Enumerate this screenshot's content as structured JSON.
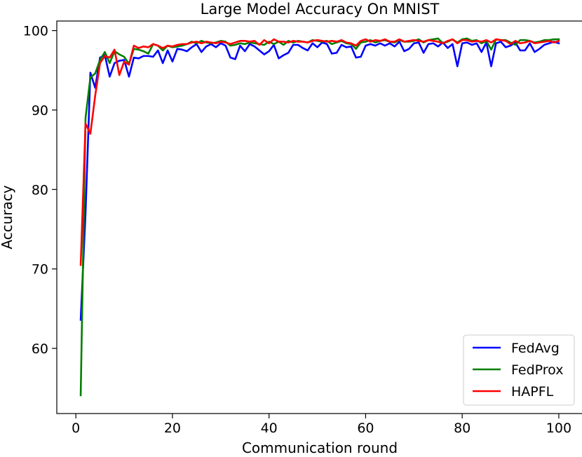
{
  "chart_data": {
    "type": "line",
    "title": "Large Model Accuracy On MNIST",
    "xlabel": "Communication round",
    "ylabel": "Accuracy",
    "xlim": [
      -3.95,
      104.95
    ],
    "ylim": [
      51.8,
      101.2
    ],
    "xticks": [
      0,
      20,
      40,
      60,
      80,
      100
    ],
    "yticks": [
      60,
      70,
      80,
      90,
      100
    ],
    "grid": false,
    "legend_position": "lower-right",
    "series": [
      {
        "name": "FedAvg",
        "color": "#0000ff",
        "x": [
          1,
          2,
          3,
          4,
          5,
          6,
          7,
          8,
          9,
          10,
          11,
          12,
          13,
          14,
          15,
          16,
          17,
          18,
          19,
          20,
          21,
          22,
          23,
          24,
          25,
          26,
          27,
          28,
          29,
          30,
          31,
          32,
          33,
          34,
          35,
          36,
          37,
          38,
          39,
          40,
          41,
          42,
          43,
          44,
          45,
          46,
          47,
          48,
          49,
          50,
          51,
          52,
          53,
          54,
          55,
          56,
          57,
          58,
          59,
          60,
          61,
          62,
          63,
          64,
          65,
          66,
          67,
          68,
          69,
          70,
          71,
          72,
          73,
          74,
          75,
          76,
          77,
          78,
          79,
          80,
          81,
          82,
          83,
          84,
          85,
          86,
          87,
          88,
          89,
          90,
          91,
          92,
          93,
          94,
          95,
          96,
          97,
          98,
          99,
          100
        ],
        "values": [
          63.6,
          77.0,
          94.7,
          92.8,
          96.6,
          96.9,
          94.2,
          95.9,
          96.2,
          96.3,
          94.2,
          96.6,
          96.5,
          96.8,
          96.8,
          96.7,
          97.5,
          95.9,
          97.5,
          96.1,
          97.7,
          97.6,
          97.4,
          97.9,
          98.3,
          97.3,
          98.0,
          98.3,
          97.9,
          98.4,
          98.1,
          96.6,
          96.4,
          98.1,
          97.4,
          98.3,
          98.0,
          97.5,
          97.0,
          97.4,
          98.2,
          96.5,
          96.9,
          97.2,
          98.2,
          98.2,
          97.8,
          97.5,
          98.4,
          97.9,
          98.5,
          98.3,
          97.1,
          97.2,
          98.2,
          97.9,
          98.0,
          96.6,
          96.7,
          98.1,
          98.3,
          98.1,
          98.4,
          98.1,
          98.4,
          98.0,
          98.6,
          97.4,
          97.7,
          98.4,
          98.5,
          97.2,
          98.3,
          98.4,
          98.0,
          98.5,
          97.8,
          98.3,
          95.5,
          98.4,
          98.5,
          98.2,
          98.4,
          97.3,
          98.5,
          95.5,
          98.4,
          98.6,
          97.9,
          98.1,
          98.5,
          97.5,
          97.5,
          98.4,
          97.3,
          97.7,
          98.2,
          98.4,
          98.6,
          98.4
        ]
      },
      {
        "name": "FedProx",
        "color": "#007f00",
        "x": [
          1,
          2,
          3,
          4,
          5,
          6,
          7,
          8,
          9,
          10,
          11,
          12,
          13,
          14,
          15,
          16,
          17,
          18,
          19,
          20,
          21,
          22,
          23,
          24,
          25,
          26,
          27,
          28,
          29,
          30,
          31,
          32,
          33,
          34,
          35,
          36,
          37,
          38,
          39,
          40,
          41,
          42,
          43,
          44,
          45,
          46,
          47,
          48,
          49,
          50,
          51,
          52,
          53,
          54,
          55,
          56,
          57,
          58,
          59,
          60,
          61,
          62,
          63,
          64,
          65,
          66,
          67,
          68,
          69,
          70,
          71,
          72,
          73,
          74,
          75,
          76,
          77,
          78,
          79,
          80,
          81,
          82,
          83,
          84,
          85,
          86,
          87,
          88,
          89,
          90,
          91,
          92,
          93,
          94,
          95,
          96,
          97,
          98,
          99,
          100
        ],
        "values": [
          54.1,
          89.0,
          94.1,
          94.6,
          96.3,
          97.3,
          95.9,
          97.4,
          97.0,
          96.7,
          95.8,
          97.7,
          97.6,
          97.4,
          97.1,
          98.3,
          98.1,
          97.5,
          98.1,
          97.9,
          98.0,
          98.1,
          98.3,
          98.6,
          98.4,
          98.7,
          98.5,
          98.4,
          98.5,
          98.7,
          98.6,
          98.1,
          98.2,
          98.4,
          98.3,
          98.5,
          98.4,
          98.3,
          98.2,
          98.6,
          98.3,
          98.6,
          98.2,
          98.7,
          98.5,
          98.7,
          98.6,
          98.5,
          98.8,
          98.7,
          98.6,
          98.7,
          98.3,
          98.5,
          98.7,
          98.4,
          98.3,
          97.7,
          98.5,
          98.6,
          98.8,
          98.5,
          98.7,
          98.8,
          98.6,
          98.5,
          98.8,
          98.6,
          98.6,
          98.7,
          98.9,
          98.5,
          98.8,
          98.9,
          99.0,
          98.4,
          98.6,
          98.9,
          98.5,
          98.9,
          99.0,
          98.7,
          98.8,
          98.4,
          98.7,
          97.6,
          98.9,
          98.8,
          98.8,
          98.5,
          98.2,
          98.8,
          98.8,
          98.7,
          98.5,
          98.6,
          98.8,
          98.8,
          98.9,
          98.9
        ]
      },
      {
        "name": "HAPFL",
        "color": "#ff0000",
        "x": [
          1,
          2,
          3,
          4,
          5,
          6,
          7,
          8,
          9,
          10,
          11,
          12,
          13,
          14,
          15,
          16,
          17,
          18,
          19,
          20,
          21,
          22,
          23,
          24,
          25,
          26,
          27,
          28,
          29,
          30,
          31,
          32,
          33,
          34,
          35,
          36,
          37,
          38,
          39,
          40,
          41,
          42,
          43,
          44,
          45,
          46,
          47,
          48,
          49,
          50,
          51,
          52,
          53,
          54,
          55,
          56,
          57,
          58,
          59,
          60,
          61,
          62,
          63,
          64,
          65,
          66,
          67,
          68,
          69,
          70,
          71,
          72,
          73,
          74,
          75,
          76,
          77,
          78,
          79,
          80,
          81,
          82,
          83,
          84,
          85,
          86,
          87,
          88,
          89,
          90,
          91,
          92,
          93,
          94,
          95,
          96,
          97,
          98,
          99,
          100
        ],
        "values": [
          70.5,
          88.3,
          87.0,
          91.8,
          95.9,
          96.8,
          96.6,
          97.6,
          94.4,
          96.1,
          95.7,
          98.1,
          97.8,
          98.0,
          97.9,
          98.3,
          98.1,
          97.8,
          98.1,
          98.0,
          98.2,
          98.3,
          98.3,
          98.5,
          98.6,
          98.4,
          98.6,
          98.5,
          98.4,
          98.6,
          98.5,
          98.3,
          98.5,
          98.7,
          98.7,
          98.6,
          98.7,
          98.2,
          98.8,
          98.4,
          98.9,
          98.6,
          98.6,
          98.5,
          98.7,
          98.6,
          98.6,
          98.5,
          98.7,
          98.8,
          98.7,
          98.6,
          98.7,
          98.6,
          98.8,
          98.5,
          98.4,
          98.1,
          98.7,
          98.9,
          98.6,
          98.8,
          98.7,
          98.9,
          98.6,
          98.6,
          98.9,
          98.6,
          98.7,
          98.8,
          98.7,
          98.6,
          98.8,
          98.7,
          98.6,
          98.4,
          98.7,
          98.9,
          98.4,
          98.8,
          98.8,
          98.6,
          98.7,
          98.6,
          98.8,
          98.5,
          98.9,
          98.8,
          98.7,
          98.3,
          98.7,
          98.4,
          98.5,
          98.7,
          98.4,
          98.5,
          98.6,
          98.7,
          98.5,
          98.7
        ]
      }
    ]
  }
}
